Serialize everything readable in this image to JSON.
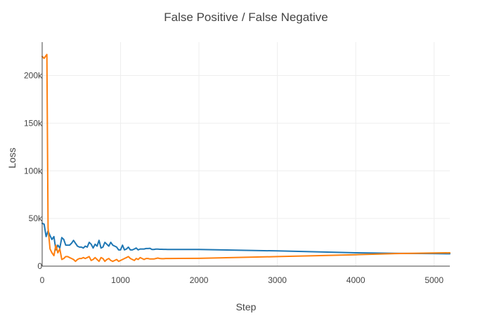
{
  "chart_data": {
    "type": "line",
    "title": "False Positive / False Negative",
    "xlabel": "Step",
    "ylabel": "Loss",
    "xlim": [
      0,
      5200
    ],
    "ylim": [
      0,
      235000
    ],
    "x_ticks": [
      0,
      1000,
      2000,
      3000,
      4000,
      5000
    ],
    "x_tick_labels": [
      "0",
      "1000",
      "2000",
      "3000",
      "4000",
      "5000"
    ],
    "y_ticks": [
      0,
      50000,
      100000,
      150000,
      200000
    ],
    "y_tick_labels": [
      "0",
      "50k",
      "100k",
      "150k",
      "200k"
    ],
    "grid": true,
    "series": [
      {
        "color": "#1f77b4",
        "x": [
          0,
          25,
          50,
          75,
          100,
          125,
          150,
          175,
          200,
          225,
          250,
          275,
          300,
          325,
          350,
          375,
          400,
          425,
          450,
          475,
          500,
          525,
          550,
          575,
          600,
          625,
          650,
          675,
          700,
          725,
          750,
          775,
          800,
          825,
          850,
          875,
          900,
          925,
          950,
          975,
          1000,
          1025,
          1050,
          1075,
          1100,
          1125,
          1150,
          1175,
          1200,
          1225,
          1250,
          1275,
          1300,
          1325,
          1350,
          1375,
          1400,
          1425,
          1450,
          1475,
          1500,
          1525,
          1550,
          1575,
          1600,
          1625,
          2000,
          2300,
          3000,
          4000,
          4500,
          5000,
          5200
        ],
        "values": [
          45000,
          44000,
          31000,
          37000,
          32000,
          28000,
          31000,
          17000,
          22000,
          19000,
          30000,
          28000,
          22000,
          22000,
          22000,
          24000,
          27000,
          24000,
          21000,
          20000,
          20000,
          19000,
          21000,
          20000,
          25000,
          23000,
          19000,
          23000,
          21000,
          27000,
          19000,
          20000,
          25000,
          23000,
          21000,
          25000,
          22000,
          21000,
          20000,
          17000,
          17000,
          22000,
          17000,
          18000,
          20000,
          17000,
          17000,
          18000,
          19000,
          17000,
          18000,
          18000,
          18000,
          18500,
          18500,
          18700,
          17500,
          17500,
          17800,
          17800,
          17700,
          17700,
          17600,
          17600,
          17500,
          17500,
          17500,
          17000,
          16000,
          14000,
          13500,
          13200,
          13000
        ]
      },
      {
        "color": "#ff7f0e",
        "x": [
          0,
          25,
          50,
          60,
          75,
          100,
          125,
          150,
          175,
          200,
          225,
          250,
          275,
          300,
          325,
          350,
          375,
          400,
          425,
          450,
          475,
          500,
          525,
          550,
          575,
          600,
          625,
          650,
          675,
          700,
          725,
          750,
          775,
          800,
          825,
          850,
          875,
          900,
          925,
          950,
          975,
          1000,
          1025,
          1050,
          1075,
          1100,
          1125,
          1150,
          1175,
          1200,
          1225,
          1250,
          1275,
          1300,
          1325,
          1350,
          1375,
          1400,
          1425,
          1450,
          1475,
          1500,
          1525,
          1550,
          1575,
          1600,
          1625,
          2000,
          2300,
          3000,
          3500,
          4000,
          4500,
          5000,
          5200
        ],
        "values": [
          220000,
          218000,
          221000,
          222000,
          40000,
          18000,
          14000,
          11000,
          22000,
          14000,
          18000,
          7000,
          8000,
          10000,
          10000,
          9000,
          8000,
          7000,
          5000,
          7000,
          8000,
          8000,
          9000,
          8000,
          9000,
          10000,
          6000,
          7000,
          9000,
          7000,
          5000,
          9000,
          8000,
          5000,
          7000,
          8000,
          6000,
          5000,
          6000,
          7000,
          5000,
          6000,
          7000,
          8000,
          9000,
          10000,
          8000,
          7000,
          6000,
          8000,
          7000,
          9000,
          8000,
          7000,
          8000,
          8000,
          7500,
          7500,
          7500,
          8000,
          8500,
          8000,
          7800,
          7800,
          8000,
          8000,
          8000,
          8200,
          8800,
          10000,
          11000,
          12000,
          13200,
          13800,
          14000
        ]
      }
    ]
  }
}
